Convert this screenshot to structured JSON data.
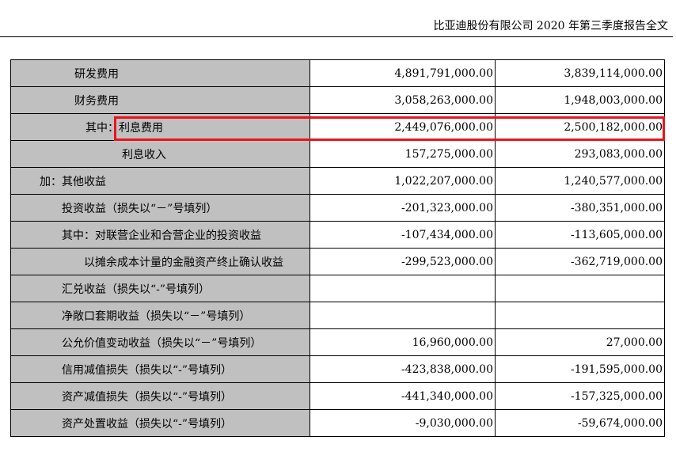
{
  "header": {
    "title": "比亚迪股份有限公司 2020 年第三季度报告全文"
  },
  "colors": {
    "label_bg": "#c0c0c0",
    "highlight": "#e8141e"
  },
  "rows": [
    {
      "label": "研发费用",
      "v1": "4,891,791,000.00",
      "v2": "3,839,114,000.00"
    },
    {
      "label": "财务费用",
      "v1": "3,058,263,000.00",
      "v2": "1,948,003,000.00"
    },
    {
      "prefix": "其中：",
      "label": "利息费用",
      "v1": "2,449,076,000.00",
      "v2": "2,500,182,000.00"
    },
    {
      "label": "利息收入",
      "v1": "157,275,000.00",
      "v2": "293,083,000.00"
    },
    {
      "label": "加：其他收益",
      "v1": "1,022,207,000.00",
      "v2": "1,240,577,000.00"
    },
    {
      "label": "投资收益（损失以“－”号填列）",
      "v1": "-201,323,000.00",
      "v2": "-380,351,000.00"
    },
    {
      "label": "其中：对联营企业和合营企业的投资收益",
      "v1": "-107,434,000.00",
      "v2": "-113,605,000.00"
    },
    {
      "label": "以摊余成本计量的金融资产终止确认收益",
      "v1": "-299,523,000.00",
      "v2": "-362,719,000.00"
    },
    {
      "label": "汇兑收益（损失以“-”号填列）",
      "v1": "",
      "v2": ""
    },
    {
      "label": "净敞口套期收益（损失以“－”号填列）",
      "v1": "",
      "v2": ""
    },
    {
      "label": "公允价值变动收益（损失以“－”号填列）",
      "v1": "16,960,000.00",
      "v2": "27,000.00"
    },
    {
      "label": "信用减值损失（损失以“-”号填列）",
      "v1": "-423,838,000.00",
      "v2": "-191,595,000.00"
    },
    {
      "label": "资产减值损失（损失以“-”号填列）",
      "v1": "-441,340,000.00",
      "v2": "-157,325,000.00"
    },
    {
      "label": "资产处置收益（损失以“-”号填列）",
      "v1": "-9,030,000.00",
      "v2": "-59,674,000.00"
    }
  ]
}
